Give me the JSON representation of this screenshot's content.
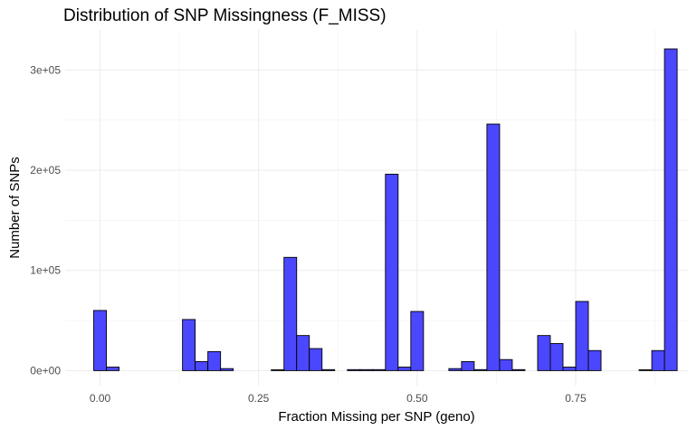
{
  "chart_data": {
    "type": "bar",
    "subtype": "histogram",
    "title": "Distribution of SNP Missingness (F_MISS)",
    "xlabel": "Fraction Missing per SNP (geno)",
    "ylabel": "Number of SNPs",
    "bar_color": "#4b47ff",
    "bar_outline": "#000000",
    "grid": true,
    "xlim": [
      -0.055,
      0.927
    ],
    "ylim": [
      -15000,
      340000
    ],
    "x_ticks": [
      0.0,
      0.25,
      0.5,
      0.75
    ],
    "x_tick_labels": [
      "0.00",
      "0.25",
      "0.50",
      "0.75"
    ],
    "y_ticks": [
      0,
      100000,
      200000,
      300000
    ],
    "y_tick_labels": [
      "0e+00",
      "1e+05",
      "2e+05",
      "3e+05"
    ],
    "bin_width": 0.02,
    "bins_start": -0.01,
    "bin_counts": [
      60000,
      3500,
      0,
      0,
      0,
      0,
      0,
      51000,
      9000,
      19000,
      2000,
      0,
      0,
      0,
      800,
      113000,
      35000,
      22000,
      1000,
      0,
      1000,
      1000,
      1000,
      196000,
      3500,
      59000,
      0,
      0,
      2000,
      9000,
      1000,
      246000,
      11000,
      1000,
      0,
      35000,
      27000,
      3500,
      69000,
      20000,
      0,
      0,
      0,
      800,
      20000,
      321000
    ]
  }
}
